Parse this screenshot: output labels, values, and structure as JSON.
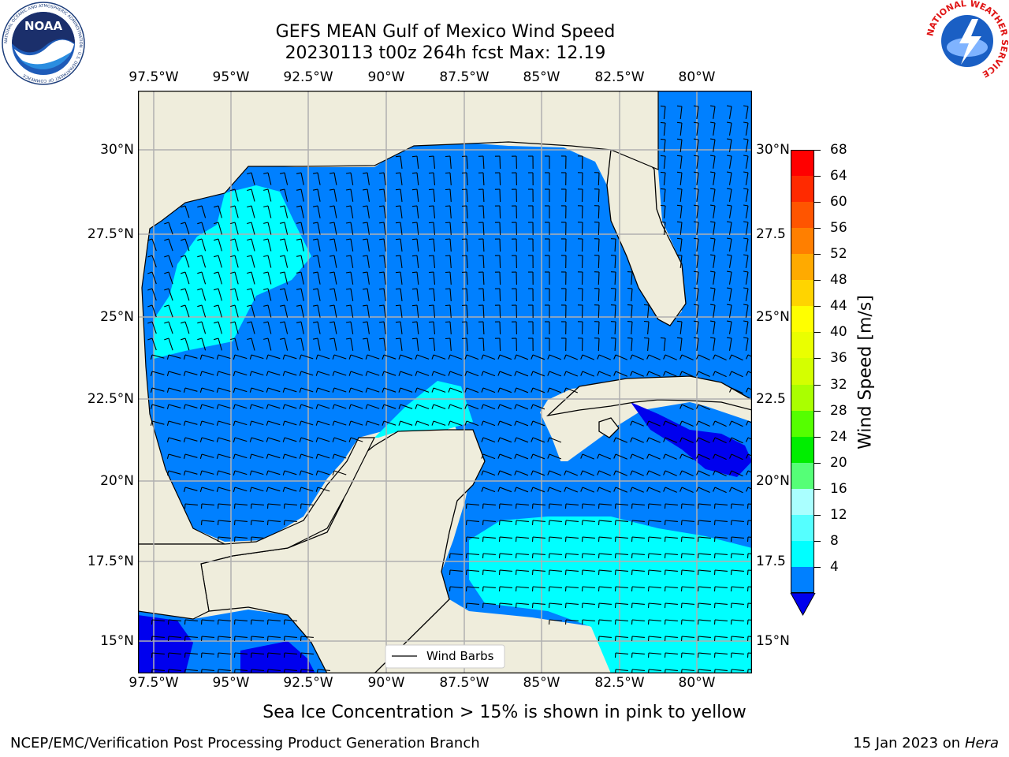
{
  "title_line1": "GEFS MEAN Gulf of Mexico Wind Speed",
  "title_line2": "20230113 t00z 264h fcst   Max: 12.19",
  "lon_ticks": [
    "97.5°W",
    "95°W",
    "92.5°W",
    "90°W",
    "87.5°W",
    "85°W",
    "82.5°W",
    "80°W"
  ],
  "lat_ticks_left": [
    "30°N",
    "27.5°N",
    "25°N",
    "22.5°N",
    "20°N",
    "17.5°N",
    "15°N"
  ],
  "lat_ticks_right": [
    "30°N",
    "27.5",
    "25°N",
    "22.5",
    "20°N",
    "17.5",
    "15°N"
  ],
  "legend_label": "Wind Barbs",
  "colorbar": {
    "label": "Wind Speed [m/s]",
    "ticks": [
      "68",
      "64",
      "60",
      "56",
      "52",
      "48",
      "44",
      "40",
      "36",
      "32",
      "28",
      "24",
      "20",
      "16",
      "12",
      "8",
      "4"
    ],
    "colors": [
      "#ff0000",
      "#ff2a00",
      "#ff5500",
      "#ff7f00",
      "#ffaa00",
      "#ffd400",
      "#ffff00",
      "#eaff00",
      "#d4ff00",
      "#aaff00",
      "#55ff00",
      "#00ee00",
      "#55ff77",
      "#aaffff",
      "#55ffff",
      "#00ffff",
      "#0080ff"
    ],
    "extend_color": "#0000ee"
  },
  "ice_note": "Sea Ice Concentration > 15% is shown in pink to yellow",
  "footer_left": "NCEP/EMC/Verification Post Processing Product Generation Branch",
  "footer_date": "15 Jan 2023 on ",
  "footer_machine": "Hera",
  "colors": {
    "land": "#efeddc",
    "wind_4_8": "#0080ff",
    "wind_8_12": "#00ffff",
    "wind_below_4": "#0000ee",
    "grid": "#b0b0b0"
  },
  "logos": {
    "left_name": "noara-logo",
    "left_text": "NOAA",
    "left_ring": "NATIONAL OCEANIC AND ATMOSPHERIC ADMINISTRATION · U.S. DEPARTMENT OF COMMERCE",
    "right_name": "nws-logo",
    "right_ring": "NATIONAL WEATHER SERVICE"
  }
}
